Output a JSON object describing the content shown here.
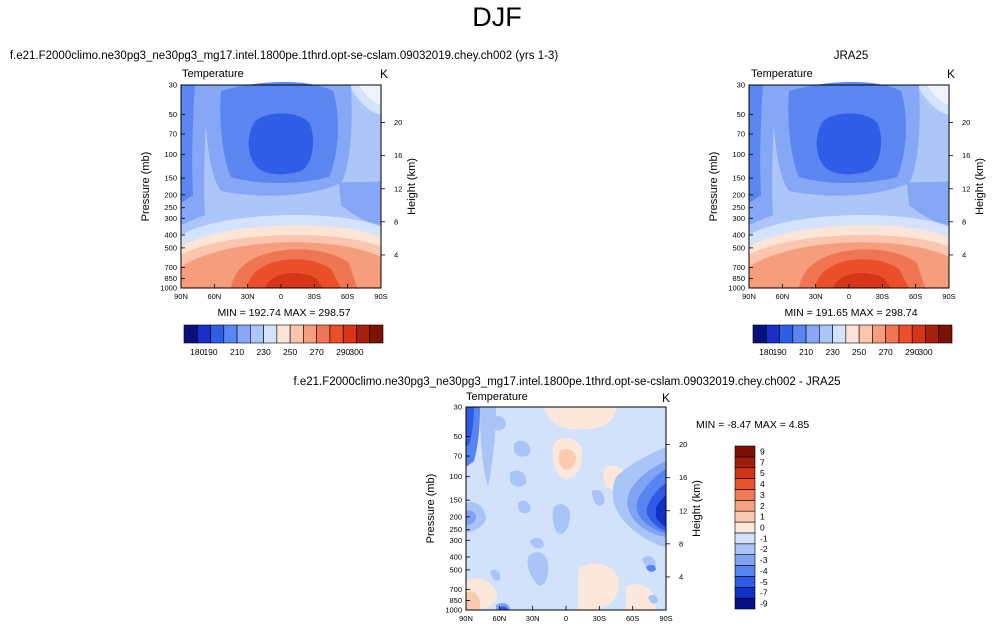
{
  "page": {
    "title": "DJF"
  },
  "panels": [
    {
      "id": "model",
      "title": "f.e21.F2000climo.ne30pg3_ne30pg3_mg17.intel.1800pe.1thrd.opt-se-cslam.09032019.chey.ch002 (yrs 1-3)",
      "variable": "Temperature",
      "units": "K",
      "stats": "MIN = 192.74  MAX = 298.57"
    },
    {
      "id": "obs",
      "title": "JRA25",
      "variable": "Temperature",
      "units": "K",
      "stats": "MIN = 191.65  MAX = 298.74"
    },
    {
      "id": "diff",
      "title": "f.e21.F2000climo.ne30pg3_ne30pg3_mg17.intel.1800pe.1thrd.opt-se-cslam.09032019.chey.ch002 - JRA25",
      "variable": "Temperature",
      "units": "K",
      "stats": "MIN = -8.47  MAX =  4.85"
    }
  ],
  "chart_data": [
    {
      "type": "heatmap",
      "panel": "model",
      "title": "f.e21.F2000climo.ne30pg3_ne30pg3_mg17.intel.1800pe.1thrd.opt-se-cslam.09032019.chey.ch002 (yrs 1-3)",
      "xlabel": "",
      "ylabel": "Pressure (mb)",
      "ylabel_right": "Height (km)",
      "x_ticks": [
        "90N",
        "60N",
        "30N",
        "0",
        "30S",
        "60S",
        "90S"
      ],
      "x_tick_values": [
        90,
        60,
        30,
        0,
        -30,
        -60,
        -90
      ],
      "y_ticks": [
        "30",
        "50",
        "70",
        "100",
        "150",
        "200",
        "250",
        "300",
        "400",
        "500",
        "700",
        "850",
        "1000"
      ],
      "y_tick_values": [
        30,
        50,
        70,
        100,
        150,
        200,
        250,
        300,
        400,
        500,
        700,
        850,
        1000
      ],
      "y_right_ticks": [
        "20",
        "16",
        "12",
        "8",
        "4"
      ],
      "y_right_tick_values": [
        20,
        16,
        12,
        8,
        4
      ],
      "xlim": [
        90,
        -90
      ],
      "ylim": [
        1000,
        30
      ],
      "min": 192.74,
      "max": 298.57,
      "colorbar_labels": [
        "180",
        "190",
        "210",
        "230",
        "250",
        "270",
        "290",
        "300"
      ],
      "levels": [
        180,
        185,
        190,
        200,
        210,
        220,
        230,
        240,
        250,
        260,
        270,
        280,
        290,
        295,
        300
      ]
    },
    {
      "type": "heatmap",
      "panel": "obs",
      "title": "JRA25",
      "xlabel": "",
      "ylabel": "Pressure (mb)",
      "ylabel_right": "Height (km)",
      "x_ticks": [
        "90N",
        "60N",
        "30N",
        "0",
        "30S",
        "60S",
        "90S"
      ],
      "x_tick_values": [
        90,
        60,
        30,
        0,
        -30,
        -60,
        -90
      ],
      "y_ticks": [
        "30",
        "50",
        "70",
        "100",
        "150",
        "200",
        "250",
        "300",
        "400",
        "500",
        "700",
        "850",
        "1000"
      ],
      "y_tick_values": [
        30,
        50,
        70,
        100,
        150,
        200,
        250,
        300,
        400,
        500,
        700,
        850,
        1000
      ],
      "y_right_ticks": [
        "20",
        "16",
        "12",
        "8",
        "4"
      ],
      "y_right_tick_values": [
        20,
        16,
        12,
        8,
        4
      ],
      "xlim": [
        90,
        -90
      ],
      "ylim": [
        1000,
        30
      ],
      "min": 191.65,
      "max": 298.74,
      "colorbar_labels": [
        "180",
        "190",
        "210",
        "230",
        "250",
        "270",
        "290",
        "300"
      ],
      "levels": [
        180,
        185,
        190,
        200,
        210,
        220,
        230,
        240,
        250,
        260,
        270,
        280,
        290,
        295,
        300
      ]
    },
    {
      "type": "heatmap",
      "panel": "diff",
      "title": "f.e21.F2000climo.ne30pg3_ne30pg3_mg17.intel.1800pe.1thrd.opt-se-cslam.09032019.chey.ch002 - JRA25",
      "xlabel": "",
      "ylabel": "Pressure (mb)",
      "ylabel_right": "Height (km)",
      "x_ticks": [
        "90N",
        "60N",
        "30N",
        "0",
        "30S",
        "60S",
        "90S"
      ],
      "x_tick_values": [
        90,
        60,
        30,
        0,
        -30,
        -60,
        -90
      ],
      "y_ticks": [
        "30",
        "50",
        "70",
        "100",
        "150",
        "200",
        "250",
        "300",
        "400",
        "500",
        "700",
        "850",
        "1000"
      ],
      "y_tick_values": [
        30,
        50,
        70,
        100,
        150,
        200,
        250,
        300,
        400,
        500,
        700,
        850,
        1000
      ],
      "y_right_ticks": [
        "20",
        "16",
        "12",
        "8",
        "4"
      ],
      "y_right_tick_values": [
        20,
        16,
        12,
        8,
        4
      ],
      "xlim": [
        90,
        -90
      ],
      "ylim": [
        1000,
        30
      ],
      "min": -8.47,
      "max": 4.85,
      "colorbar_labels": [
        "9",
        "7",
        "5",
        "4",
        "3",
        "2",
        "1",
        "0",
        "-1",
        "-2",
        "-3",
        "-4",
        "-5",
        "-7",
        "-9"
      ],
      "levels": [
        -9,
        -7,
        -5,
        -4,
        -3,
        -2,
        -1,
        0,
        1,
        2,
        3,
        4,
        5,
        7,
        9
      ]
    }
  ],
  "colors": {
    "abs_scale": [
      "#08107e",
      "#1a2fc8",
      "#2f5de6",
      "#5b86f2",
      "#86a7f5",
      "#adc6f8",
      "#d3e3fb",
      "#fce5d6",
      "#fbc6ad",
      "#f59d7d",
      "#f07552",
      "#ea4f2a",
      "#d63617",
      "#a8200b",
      "#7c1104"
    ],
    "diff_scale": [
      "#081088",
      "#1130c6",
      "#2f5ae6",
      "#5684f0",
      "#80a4f3",
      "#a9c4f7",
      "#d2e2fb",
      "#fce8da",
      "#fbcbb0",
      "#f6a384",
      "#f07a58",
      "#e8522d",
      "#cf3515",
      "#a01e08",
      "#7e1003"
    ]
  }
}
